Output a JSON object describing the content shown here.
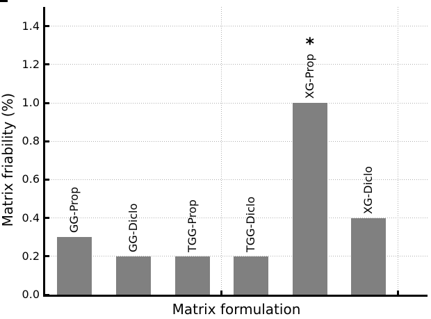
{
  "chart_data": {
    "type": "bar",
    "title": "",
    "categories": [
      "GG-Prop",
      "GG-Diclo",
      "TGG-Prop",
      "TGG-Diclo",
      "XG-Prop",
      "XG-Diclo"
    ],
    "values": [
      0.3,
      0.2,
      0.2,
      0.2,
      1.0,
      0.4
    ],
    "xlabel": "Matrix formulation",
    "ylabel": "Matrix friability (%)",
    "ylim": [
      0,
      1.5
    ],
    "xlim": [
      0,
      6.5
    ],
    "yticks": [
      0,
      0.2,
      0.4,
      0.6,
      0.8,
      1.0,
      1.2,
      1.4
    ],
    "ytick_labels": [
      "0.0",
      "0.2",
      "0.4",
      "0.6",
      "0.8",
      "1.0",
      "1.2",
      "1.4"
    ],
    "xticks": [
      3,
      6
    ],
    "xtick_labels": [
      "",
      ""
    ],
    "grid": "dotted",
    "grid_color": "#adadad",
    "axis_color": "#000000",
    "bar_color": "#808080",
    "legend": "none",
    "bar_labels_rotated": true,
    "annotations": [
      {
        "text": "*",
        "category": "XG-Prop"
      }
    ]
  }
}
